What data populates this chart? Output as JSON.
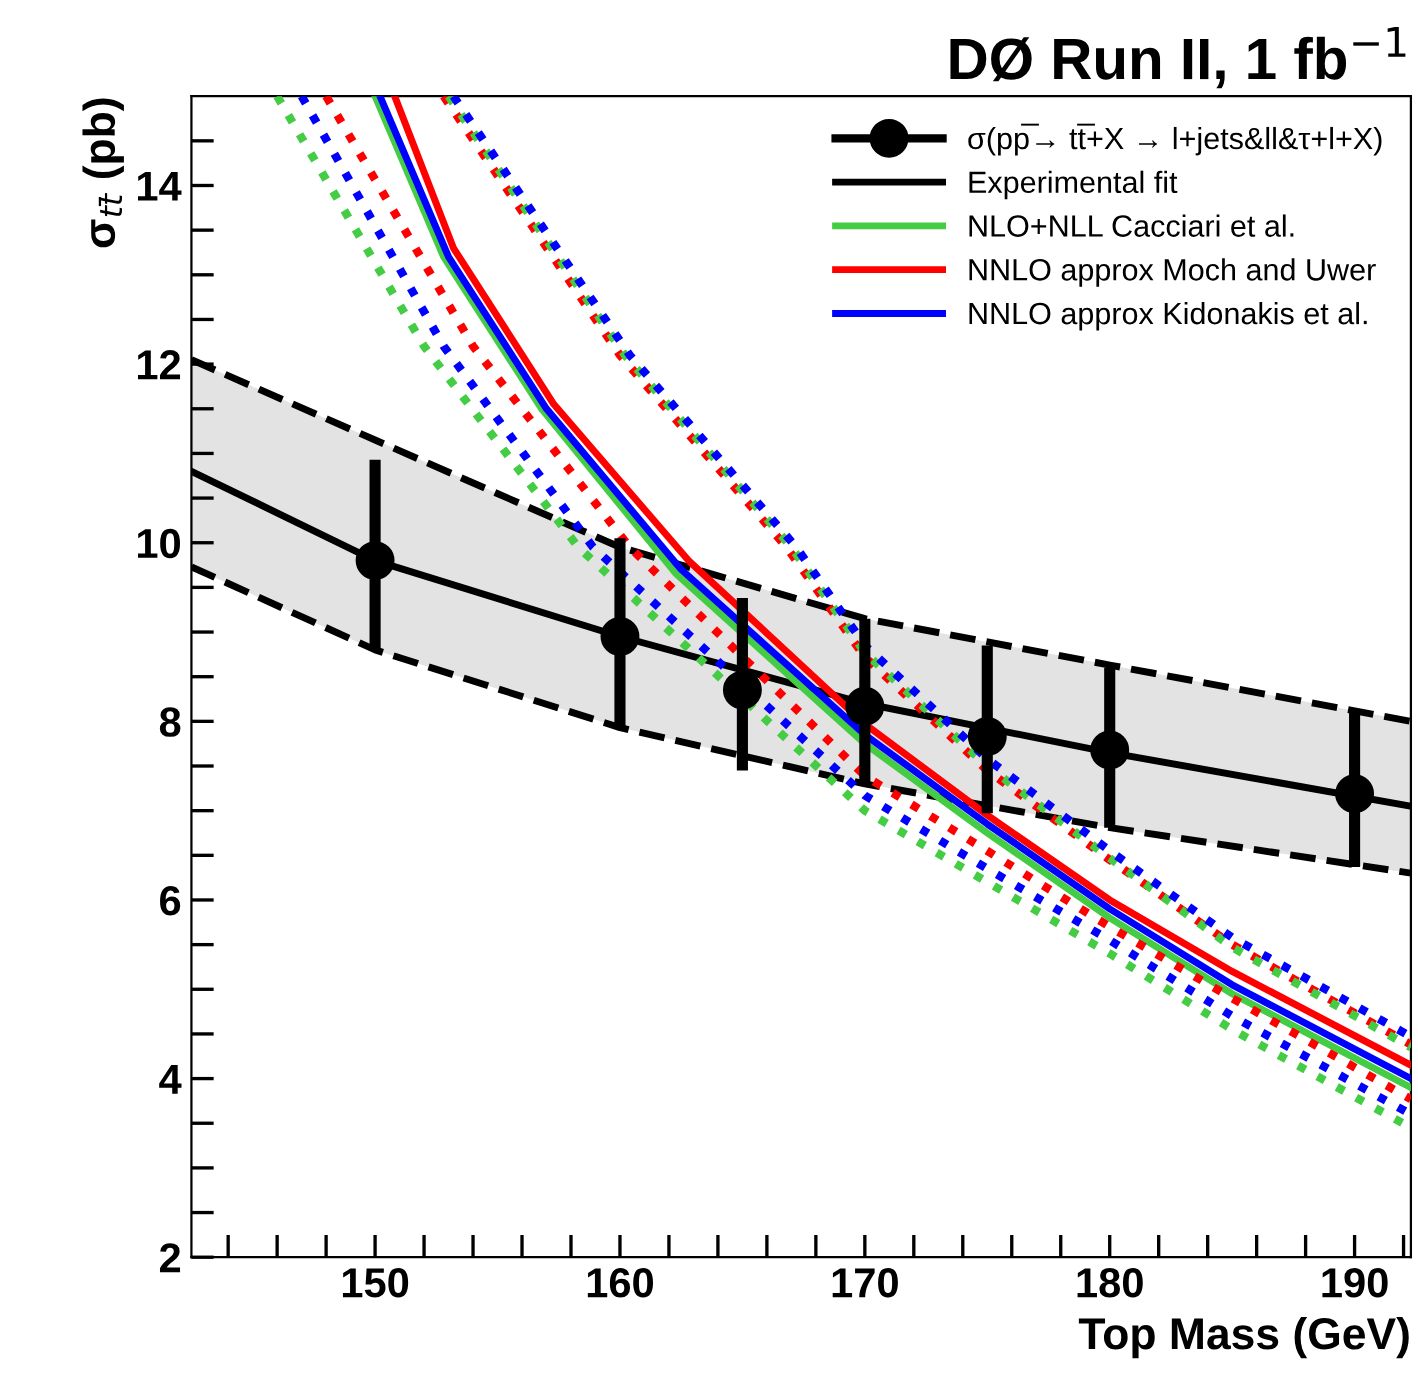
{
  "chart_data": {
    "type": "line",
    "title": "DØ Run II, 1 fb$^{−1}$",
    "xlabel": "Top Mass (GeV)",
    "ylabel": "σ$_{tt̄}$ (pb)",
    "xlim": [
      142.5,
      192.3
    ],
    "ylim": [
      2,
      15
    ],
    "xticks": [
      {
        "value": 144,
        "label": null
      },
      {
        "value": 146,
        "label": null
      },
      {
        "value": 148,
        "label": null
      },
      150,
      {
        "value": 152,
        "label": null
      },
      {
        "value": 154,
        "label": null
      },
      {
        "value": 156,
        "label": null
      },
      {
        "value": 158,
        "label": null
      },
      160,
      {
        "value": 162,
        "label": null
      },
      {
        "value": 164,
        "label": null
      },
      {
        "value": 166,
        "label": null
      },
      {
        "value": 168,
        "label": null
      },
      170,
      {
        "value": 172,
        "label": null
      },
      {
        "value": 174,
        "label": null
      },
      {
        "value": 176,
        "label": null
      },
      {
        "value": 178,
        "label": null
      },
      180,
      {
        "value": 182,
        "label": null
      },
      {
        "value": 184,
        "label": null
      },
      {
        "value": 186,
        "label": null
      },
      {
        "value": 188,
        "label": null
      },
      190,
      {
        "value": 192,
        "label": null
      }
    ],
    "yticks": [
      2,
      {
        "value": 2.5,
        "label": null
      },
      {
        "value": 3,
        "label": null
      },
      {
        "value": 3.5,
        "label": null
      },
      4,
      {
        "value": 4.5,
        "label": null
      },
      {
        "value": 5,
        "label": null
      },
      {
        "value": 5.5,
        "label": null
      },
      6,
      {
        "value": 6.5,
        "label": null
      },
      {
        "value": 7,
        "label": null
      },
      {
        "value": 7.5,
        "label": null
      },
      8,
      {
        "value": 8.5,
        "label": null
      },
      {
        "value": 9,
        "label": null
      },
      {
        "value": 9.5,
        "label": null
      },
      10,
      {
        "value": 10.5,
        "label": null
      },
      {
        "value": 11,
        "label": null
      },
      {
        "value": 11.5,
        "label": null
      },
      12,
      {
        "value": 12.5,
        "label": null
      },
      {
        "value": 13,
        "label": null
      },
      {
        "value": 13.5,
        "label": null
      },
      14,
      {
        "value": 14.5,
        "label": null
      }
    ],
    "grid": false,
    "legend": "top right",
    "series": [
      {
        "name": "Experimental fit",
        "color": "#000000",
        "x": [
          142.5,
          150,
          160,
          170,
          180,
          192.3
        ],
        "values": [
          10.8,
          9.8,
          8.95,
          8.2,
          7.65,
          7.05
        ],
        "lower": [
          9.73,
          8.8,
          7.93,
          7.3,
          6.81,
          6.3
        ],
        "upper": [
          12.05,
          11.15,
          9.95,
          9.15,
          8.63,
          8.0
        ]
      },
      {
        "color": "#000000",
        "line_style": "dashed",
        "x": [
          142.5,
          150,
          160,
          170,
          180,
          192.3
        ],
        "values": [
          9.73,
          8.8,
          7.93,
          7.3,
          6.81,
          6.3
        ]
      },
      {
        "color": "#000000",
        "line_style": "dashed",
        "x": [
          142.5,
          150,
          160,
          170,
          180,
          192.3
        ],
        "values": [
          12.05,
          11.15,
          9.95,
          9.15,
          8.63,
          8.0
        ]
      },
      {
        "name": "NLO+NLL Cacciari et al.",
        "color": "#44cc44",
        "x": [
          150,
          152.8,
          156.8,
          162.3,
          170,
          175,
          180,
          185,
          192.3
        ],
        "values": [
          15,
          13.2,
          11.5,
          9.65,
          7.75,
          6.75,
          5.8,
          4.95,
          3.9
        ]
      },
      {
        "name": "NNLO approx Moch and Uwer",
        "color": "#ff0000",
        "x": [
          150.8,
          153.2,
          157.3,
          162.8,
          170,
          175,
          180,
          185,
          192.3
        ],
        "values": [
          15,
          13.3,
          11.55,
          9.8,
          7.97,
          6.95,
          6.0,
          5.2,
          4.15
        ]
      },
      {
        "name": "NNLO approx Kidonakis et al.",
        "color": "#0000ff",
        "x": [
          150.2,
          153,
          157,
          162.5,
          170,
          175,
          180,
          185,
          192.3
        ],
        "values": [
          15,
          13.2,
          11.5,
          9.7,
          7.85,
          6.85,
          5.9,
          5.05,
          4.0
        ]
      },
      {
        "color": "#44cc44",
        "line_style": "dotted",
        "x": [
          146,
          152,
          158.3,
          170,
          175,
          180,
          185,
          192.3
        ],
        "values": [
          15,
          12.2,
          9.95,
          7.0,
          6.2,
          5.4,
          4.55,
          3.45
        ]
      },
      {
        "color": "#0000ff",
        "line_style": "dotted",
        "x": [
          147,
          152.8,
          158.9,
          170,
          175,
          180,
          185,
          192.3
        ],
        "values": [
          15,
          12.2,
          9.95,
          7.17,
          6.35,
          5.55,
          4.7,
          3.6
        ]
      },
      {
        "color": "#ff0000",
        "line_style": "dotted",
        "x": [
          148,
          154,
          160.4,
          170,
          175,
          180,
          185,
          192.3
        ],
        "values": [
          15,
          12.2,
          9.95,
          7.39,
          6.55,
          5.7,
          4.9,
          3.77
        ]
      },
      {
        "color": "#ff0000",
        "line_style": "dotted",
        "x": [
          152.8,
          160,
          166.8,
          170,
          175,
          180,
          185,
          192.3
        ],
        "values": [
          15,
          12.1,
          9.95,
          8.72,
          7.45,
          6.45,
          5.5,
          4.38
        ]
      },
      {
        "color": "#44cc44",
        "line_style": "dotted",
        "x": [
          153,
          160.2,
          167,
          170,
          175,
          180,
          185,
          192.3
        ],
        "values": [
          15,
          12.1,
          9.95,
          8.77,
          7.5,
          6.47,
          5.47,
          4.35
        ]
      },
      {
        "color": "#0000ff",
        "line_style": "dotted",
        "x": [
          153.2,
          160.4,
          167.2,
          170,
          175,
          180,
          185,
          192.3
        ],
        "values": [
          15,
          12.1,
          9.95,
          8.85,
          7.58,
          6.55,
          5.58,
          4.47
        ]
      },
      {
        "name": "σ(pp̅→ tt̅+X → l+jets&ll&τ+l+X)",
        "type": "scatter",
        "marker": "circle",
        "color": "#000000",
        "x": [
          150,
          160,
          165,
          170,
          175,
          180,
          190
        ],
        "values": [
          9.8,
          8.95,
          8.35,
          8.17,
          7.83,
          7.68,
          7.19
        ],
        "errors": [
          [
            8.8,
            10.93
          ],
          [
            7.93,
            10.05
          ],
          [
            7.45,
            9.38
          ],
          [
            7.3,
            9.15
          ],
          [
            6.97,
            8.85
          ],
          [
            6.81,
            8.6
          ],
          [
            6.37,
            8.1
          ]
        ]
      }
    ]
  }
}
